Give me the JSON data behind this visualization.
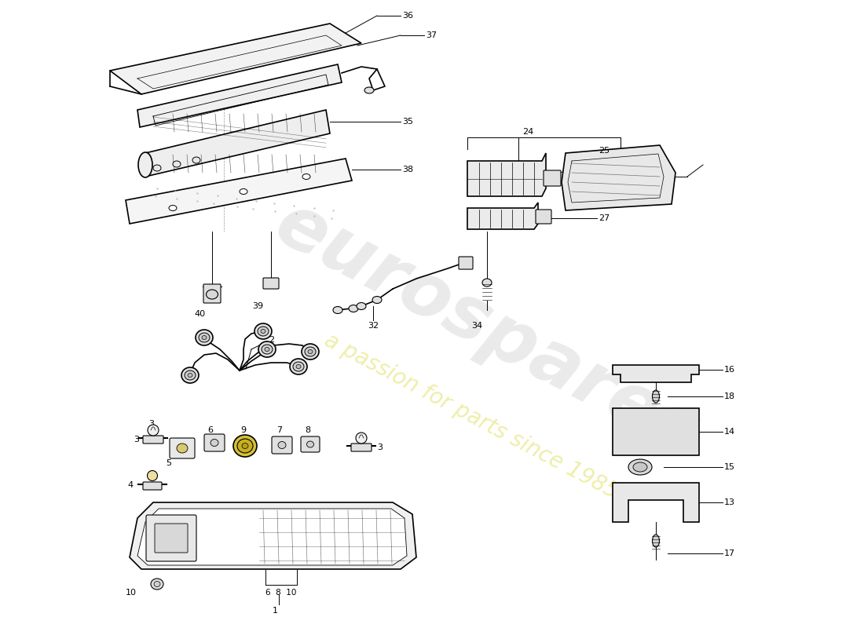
{
  "background_color": "#ffffff",
  "line_color": "#000000",
  "watermark_main": "eurospares",
  "watermark_sub": "a passion for parts since 1985",
  "fig_width": 11.0,
  "fig_height": 8.0,
  "dpi": 100
}
